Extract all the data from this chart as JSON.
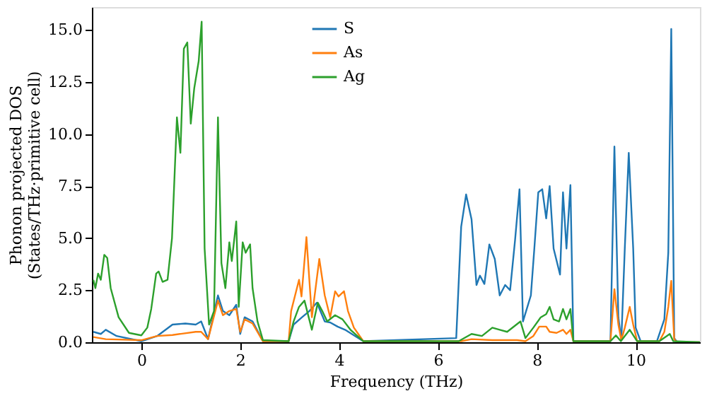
{
  "chart_data": {
    "type": "line",
    "xlabel": "Frequency (THz)",
    "ylabel": "Phonon projected DOS\n(States/THz·primitive cell)",
    "xlim": [
      -1,
      11.3
    ],
    "ylim": [
      0,
      16.1
    ],
    "xticks": [
      0,
      2,
      4,
      6,
      8,
      10
    ],
    "yticks": [
      {
        "value": 0,
        "label": "0.0"
      },
      {
        "value": 2.5,
        "label": "2.5"
      },
      {
        "value": 5,
        "label": "5.0"
      },
      {
        "value": 7.5,
        "label": "7.5"
      },
      {
        "value": 10,
        "label": "10.0"
      },
      {
        "value": 12.5,
        "label": "12.5"
      },
      {
        "value": 15,
        "label": "15.0"
      }
    ],
    "grid": false,
    "legend": "top",
    "line_style": "solid",
    "marker": "none",
    "series": [
      {
        "name": "S",
        "color": "#1f77b4",
        "x": [
          -0.97,
          -0.82,
          -0.72,
          -0.5,
          0,
          0.32,
          0.63,
          0.89,
          1.1,
          1.21,
          1.35,
          1.55,
          1.65,
          1.78,
          1.92,
          2.0,
          2.09,
          2.25,
          2.46,
          2.98,
          3.08,
          3.25,
          3.4,
          3.55,
          3.71,
          3.82,
          3.97,
          4.12,
          4.49,
          6.37,
          6.47,
          6.57,
          6.68,
          6.78,
          6.85,
          6.94,
          7.04,
          7.15,
          7.25,
          7.36,
          7.46,
          7.56,
          7.65,
          7.72,
          7.88,
          7.95,
          8.03,
          8.11,
          8.19,
          8.26,
          8.34,
          8.47,
          8.53,
          8.6,
          8.68,
          8.74,
          9.49,
          9.57,
          9.65,
          9.71,
          9.78,
          9.86,
          9.95,
          10.0,
          10.1,
          10.43,
          10.58,
          10.66,
          10.72,
          10.78,
          10.84,
          11.3
        ],
        "values": [
          0.5,
          0.4,
          0.6,
          0.3,
          0.05,
          0.3,
          0.85,
          0.9,
          0.85,
          1.0,
          0.15,
          2.25,
          1.5,
          1.3,
          1.8,
          0.4,
          1.2,
          1.0,
          0.05,
          0.05,
          0.85,
          1.2,
          1.5,
          1.9,
          1.0,
          0.95,
          0.75,
          0.6,
          0.05,
          0.2,
          5.55,
          7.1,
          5.9,
          2.75,
          3.2,
          2.8,
          4.7,
          4.0,
          2.25,
          2.75,
          2.5,
          4.9,
          7.35,
          1.0,
          2.25,
          4.5,
          7.2,
          7.35,
          5.95,
          7.5,
          4.5,
          3.25,
          7.2,
          4.5,
          7.55,
          0.05,
          0.05,
          9.4,
          1.2,
          0.1,
          4.5,
          9.1,
          4.5,
          0.7,
          0.05,
          0.05,
          1.1,
          4.3,
          15.05,
          0.2,
          0,
          0
        ]
      },
      {
        "name": "As",
        "color": "#ff7f0e",
        "x": [
          -0.97,
          -0.72,
          0,
          0.32,
          0.63,
          1.1,
          1.21,
          1.35,
          1.55,
          1.65,
          1.78,
          1.92,
          2.0,
          2.09,
          2.25,
          2.46,
          2.98,
          3.03,
          3.19,
          3.24,
          3.34,
          3.45,
          3.6,
          3.71,
          3.82,
          3.92,
          3.99,
          4.1,
          4.18,
          4.3,
          4.49,
          6.47,
          6.68,
          7.1,
          7.6,
          7.77,
          7.93,
          8.05,
          8.19,
          8.26,
          8.4,
          8.53,
          8.6,
          8.68,
          8.74,
          9.49,
          9.57,
          9.65,
          9.71,
          9.78,
          9.88,
          9.95,
          10.03,
          10.48,
          10.58,
          10.66,
          10.72,
          10.78,
          10.84,
          11.3
        ],
        "values": [
          0.25,
          0.15,
          0.1,
          0.3,
          0.35,
          0.5,
          0.5,
          0.15,
          2.0,
          1.3,
          1.5,
          1.6,
          0.5,
          1.1,
          0.9,
          0.05,
          0.05,
          1.5,
          3.0,
          2.2,
          5.05,
          1.2,
          4.0,
          2.25,
          1.2,
          2.45,
          2.2,
          2.45,
          1.5,
          0.7,
          0.05,
          0.05,
          0.15,
          0.1,
          0.1,
          0.05,
          0.3,
          0.75,
          0.75,
          0.5,
          0.45,
          0.6,
          0.4,
          0.6,
          0.05,
          0.05,
          2.55,
          0.85,
          0.1,
          0.7,
          1.7,
          0.85,
          0.05,
          0.05,
          0.5,
          1.7,
          2.95,
          0.15,
          0,
          0
        ]
      },
      {
        "name": "Ag",
        "color": "#2ca02c",
        "x": [
          -0.97,
          -0.93,
          -0.875,
          -0.82,
          -0.75,
          -0.69,
          -0.62,
          -0.46,
          -0.25,
          0.0,
          0.12,
          0.2,
          0.3,
          0.35,
          0.43,
          0.53,
          0.62,
          0.72,
          0.79,
          0.86,
          0.93,
          1.0,
          1.07,
          1.16,
          1.22,
          1.28,
          1.37,
          1.47,
          1.55,
          1.62,
          1.7,
          1.78,
          1.83,
          1.92,
          1.97,
          2.05,
          2.11,
          2.2,
          2.25,
          2.35,
          2.46,
          2.98,
          3.08,
          3.19,
          3.3,
          3.45,
          3.57,
          3.66,
          3.76,
          3.92,
          4.07,
          4.23,
          4.49,
          6.42,
          6.68,
          6.89,
          7.1,
          7.25,
          7.4,
          7.67,
          7.77,
          7.93,
          8.08,
          8.19,
          8.26,
          8.34,
          8.45,
          8.53,
          8.6,
          8.68,
          8.74,
          9.49,
          9.6,
          9.7,
          9.88,
          10.03,
          10.48,
          10.69,
          10.76,
          11.3
        ],
        "values": [
          3.0,
          2.6,
          3.3,
          3.0,
          4.2,
          4.05,
          2.6,
          1.2,
          0.45,
          0.33,
          0.7,
          1.6,
          3.3,
          3.4,
          2.9,
          3.0,
          5.0,
          10.8,
          9.1,
          14.1,
          14.4,
          10.5,
          12.2,
          13.5,
          15.4,
          4.5,
          0.85,
          1.5,
          10.8,
          3.8,
          2.6,
          4.8,
          3.9,
          5.8,
          1.7,
          4.8,
          4.3,
          4.7,
          2.6,
          1.0,
          0.1,
          0.05,
          1.0,
          1.7,
          2.0,
          0.6,
          1.9,
          1.5,
          1.0,
          1.3,
          1.1,
          0.6,
          0.05,
          0.05,
          0.4,
          0.3,
          0.7,
          0.6,
          0.5,
          1.0,
          0.2,
          0.7,
          1.2,
          1.35,
          1.7,
          1.1,
          1.0,
          1.6,
          1.1,
          1.6,
          0.05,
          0.05,
          0.33,
          0.05,
          0.6,
          0.05,
          0.05,
          0.4,
          0.05,
          0
        ]
      }
    ]
  }
}
